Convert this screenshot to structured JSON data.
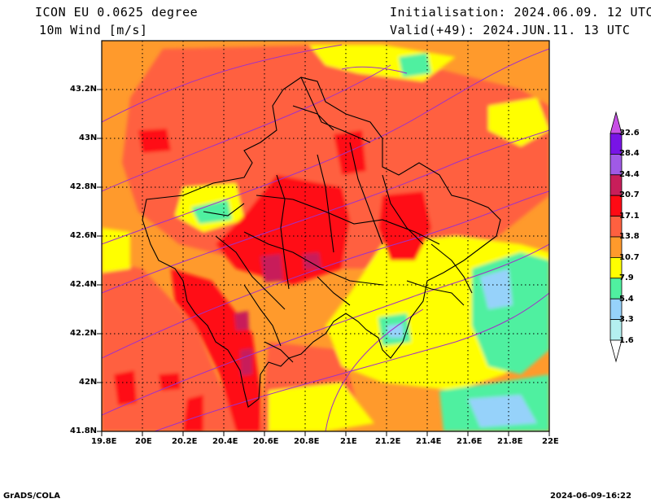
{
  "header": {
    "model": "ICON EU 0.0625 degree",
    "field": "10m Wind [m/s]",
    "init": "Initialisation: 2024.06.09. 12 UTC",
    "valid": "Valid(+49): 2024.JUN.11. 13 UTC"
  },
  "map": {
    "lat_labels": [
      "43.2N",
      "43N",
      "42.8N",
      "42.6N",
      "42.4N",
      "42.2N",
      "42N",
      "41.8N"
    ],
    "lon_labels": [
      "19.8E",
      "20E",
      "20.2E",
      "20.4E",
      "20.6E",
      "20.8E",
      "21E",
      "21.2E",
      "21.4E",
      "21.6E",
      "21.8E",
      "22E"
    ],
    "lat_range": [
      41.8,
      43.4
    ],
    "lon_range": [
      19.8,
      22.0
    ]
  },
  "colorbar": {
    "levels": [
      "32.6",
      "28.4",
      "24.4",
      "20.7",
      "17.1",
      "13.8",
      "10.7",
      "7.9",
      "5.4",
      "3.3",
      "1.6"
    ],
    "colors": [
      "#ffffff",
      "#b4f0f0",
      "#96d2fa",
      "#50f0a0",
      "#ffff00",
      "#ff9a2c",
      "#ff6040",
      "#ff0a14",
      "#c81e5a",
      "#a05ae6",
      "#7814e6",
      "#c850e6"
    ]
  },
  "footer": {
    "left": "GrADS/COLA",
    "right": "2024-06-09-16:22"
  }
}
